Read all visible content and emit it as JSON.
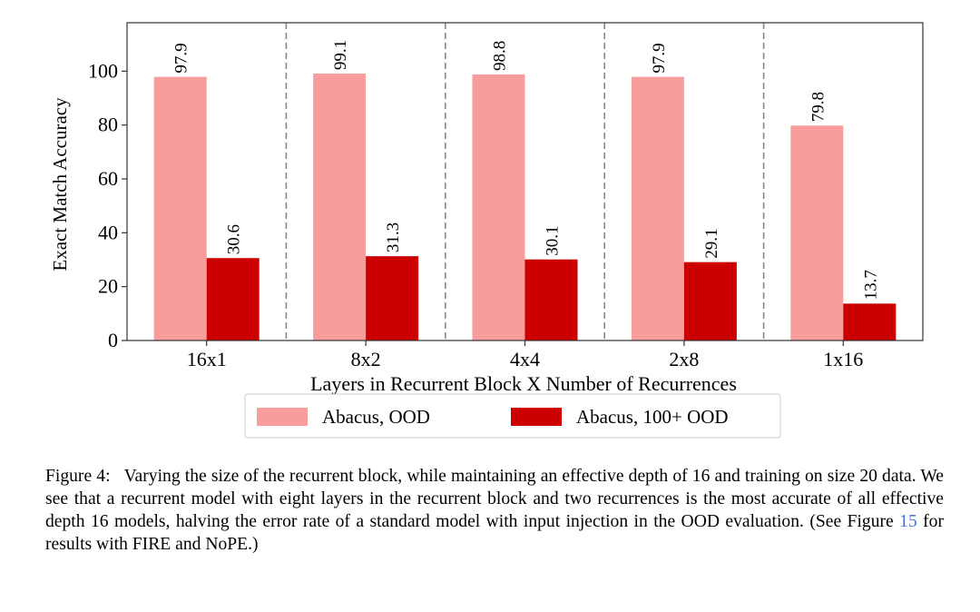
{
  "chart_data": {
    "type": "bar",
    "categories": [
      "16x1",
      "8x2",
      "4x4",
      "2x8",
      "1x16"
    ],
    "series": [
      {
        "name": "Abacus, OOD",
        "values": [
          97.9,
          99.1,
          98.8,
          97.9,
          79.8
        ],
        "color": "#f89c9c"
      },
      {
        "name": "Abacus, 100+ OOD",
        "values": [
          30.6,
          31.3,
          30.1,
          29.1,
          13.7
        ],
        "color": "#cc0000"
      }
    ],
    "xlabel": "Layers in Recurrent Block X Number of Recurrences",
    "ylabel": "Exact Match Accuracy",
    "ylim": [
      0,
      118
    ],
    "yticks": [
      0,
      20,
      40,
      60,
      80,
      100
    ],
    "legend_position": "bottom-center",
    "grid": false,
    "group_separators": "dashed"
  },
  "caption": {
    "label": "Figure 4:",
    "text_before": "Varying the size of the recurrent block, while maintaining an effective depth of 16 and training on size 20 data. We see that a recurrent model with eight layers in the recurrent block and two recurrences is the most accurate of all effective depth 16 models, halving the error rate of a standard model with input injection in the OOD evaluation. (See Figure",
    "ref": "15",
    "text_after": "for results with FIRE and NoPE.)"
  }
}
